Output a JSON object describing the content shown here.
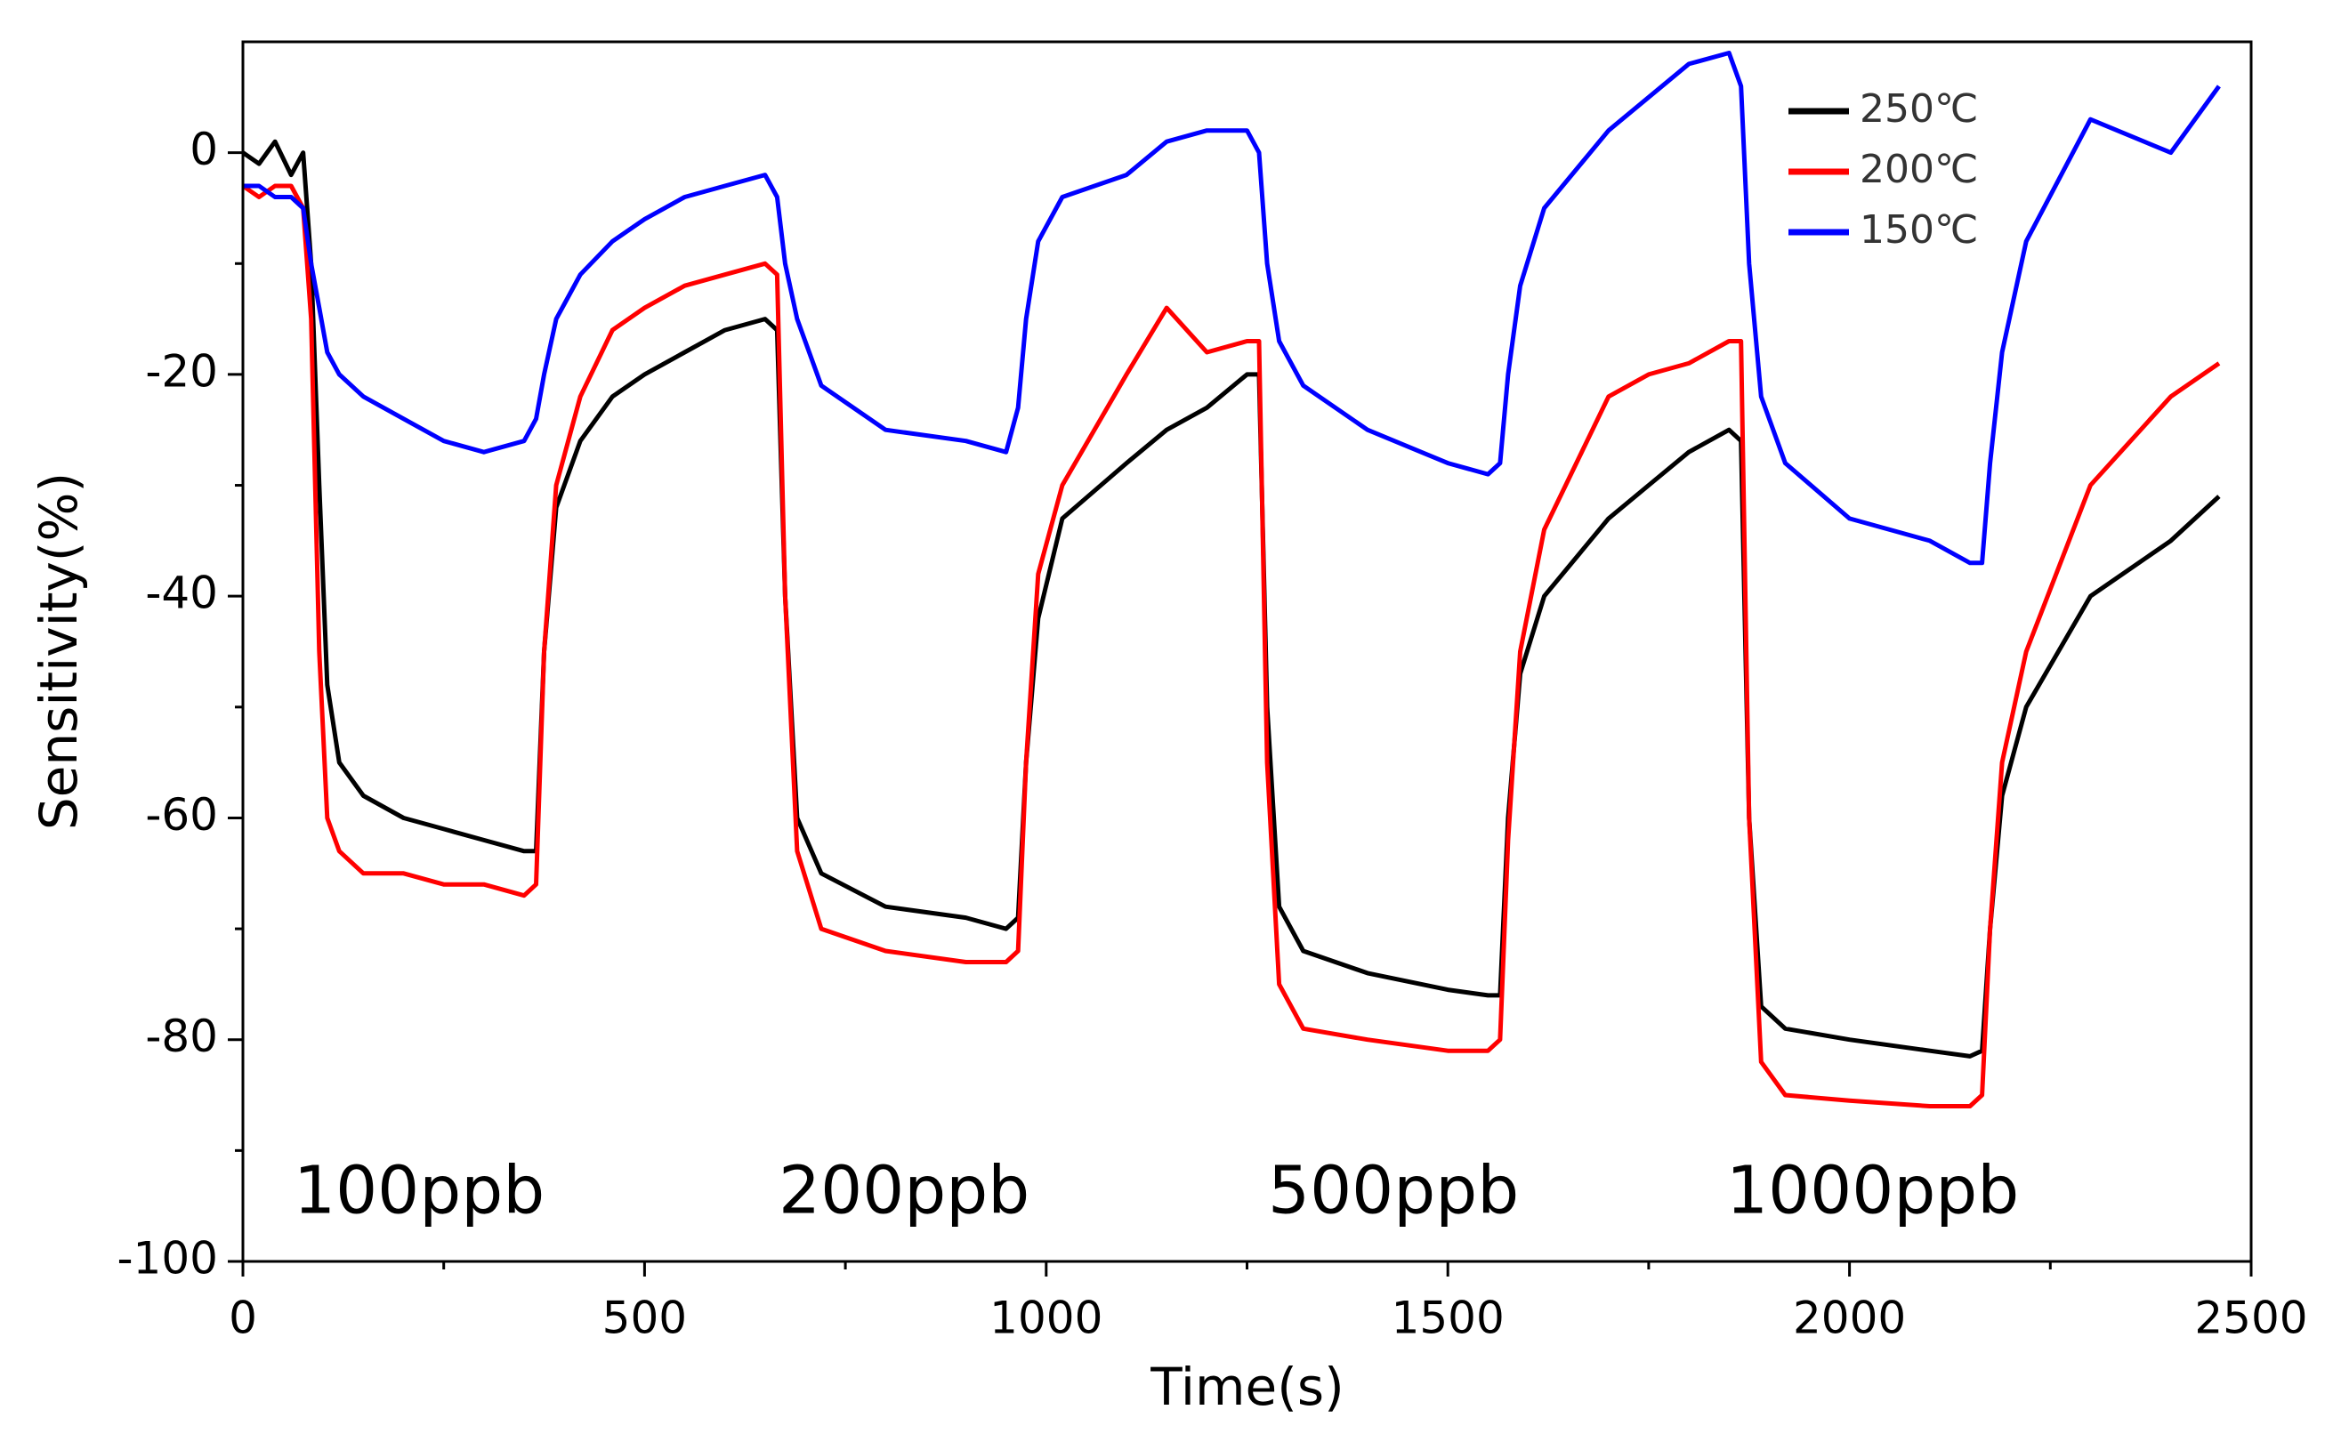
{
  "chart_data": {
    "type": "line",
    "xlabel": "Time(s)",
    "ylabel": "Sensitivity(%)",
    "xlim": [
      0,
      2500
    ],
    "xticks": [
      0,
      500,
      1000,
      1500,
      2000,
      2500
    ],
    "xticks_minor": [
      250,
      750,
      1250,
      1750,
      2250
    ],
    "ylim": [
      -100,
      10
    ],
    "yticks": [
      -100,
      -80,
      -60,
      -40,
      -20,
      0
    ],
    "yticks_minor": [
      -90,
      -70,
      -50,
      -30,
      -10
    ],
    "legend": "upper right",
    "annotations": [
      "100ppb",
      "200ppb",
      "500ppb",
      "1000ppb"
    ],
    "x": [
      0,
      20,
      40,
      60,
      75,
      85,
      95,
      105,
      120,
      150,
      200,
      250,
      300,
      350,
      365,
      375,
      390,
      420,
      460,
      500,
      550,
      600,
      650,
      665,
      675,
      690,
      720,
      800,
      900,
      950,
      965,
      975,
      990,
      1020,
      1100,
      1150,
      1200,
      1250,
      1265,
      1275,
      1290,
      1320,
      1400,
      1500,
      1550,
      1565,
      1575,
      1590,
      1620,
      1700,
      1750,
      1800,
      1850,
      1865,
      1875,
      1890,
      1920,
      2000,
      2100,
      2150,
      2165,
      2175,
      2190,
      2220,
      2300,
      2400,
      2460
    ],
    "series": [
      {
        "name": "250℃",
        "color": "#000000",
        "values": [
          0,
          -1,
          1,
          -2,
          0,
          -10,
          -30,
          -48,
          -55,
          -58,
          -60,
          -61,
          -62,
          -63,
          -63,
          -45,
          -32,
          -26,
          -22,
          -20,
          -18,
          -16,
          -15,
          -16,
          -40,
          -60,
          -65,
          -68,
          -69,
          -70,
          -69,
          -55,
          -42,
          -33,
          -28,
          -25,
          -23,
          -20,
          -20,
          -50,
          -68,
          -72,
          -74,
          -75.5,
          -76,
          -76,
          -60,
          -47,
          -40,
          -33,
          -30,
          -27,
          -25,
          -26,
          -60,
          -77,
          -79,
          -80,
          -81,
          -81.5,
          -81,
          -70,
          -58,
          -50,
          -40,
          -35,
          -31
        ]
      },
      {
        "name": "200℃",
        "color": "#ff0000",
        "values": [
          -3,
          -4,
          -3,
          -3,
          -5,
          -15,
          -45,
          -60,
          -63,
          -65,
          -65,
          -66,
          -66,
          -67,
          -66,
          -45,
          -30,
          -22,
          -16,
          -14,
          -12,
          -11,
          -10,
          -11,
          -40,
          -63,
          -70,
          -72,
          -73,
          -73,
          -72,
          -55,
          -38,
          -30,
          -20,
          -14,
          -18,
          -17,
          -17,
          -55,
          -75,
          -79,
          -80,
          -81,
          -81,
          -80,
          -62,
          -45,
          -34,
          -22,
          -20,
          -19,
          -17,
          -17,
          -60,
          -82,
          -85,
          -85.5,
          -86,
          -86,
          -85,
          -70,
          -55,
          -45,
          -30,
          -22,
          -19
        ]
      },
      {
        "name": "150℃",
        "color": "#0000ff",
        "values": [
          -3,
          -3,
          -4,
          -4,
          -5,
          -10,
          -14,
          -18,
          -20,
          -22,
          -24,
          -26,
          -27,
          -26,
          -24,
          -20,
          -15,
          -11,
          -8,
          -6,
          -4,
          -3,
          -2,
          -4,
          -10,
          -15,
          -21,
          -25,
          -26,
          -27,
          -23,
          -15,
          -8,
          -4,
          -2,
          1,
          2,
          2,
          0,
          -10,
          -17,
          -21,
          -25,
          -28,
          -29,
          -28,
          -20,
          -12,
          -5,
          2,
          5,
          8,
          9,
          6,
          -10,
          -22,
          -28,
          -33,
          -35,
          -37,
          -37,
          -28,
          -18,
          -8,
          3,
          0,
          6
        ]
      }
    ]
  }
}
